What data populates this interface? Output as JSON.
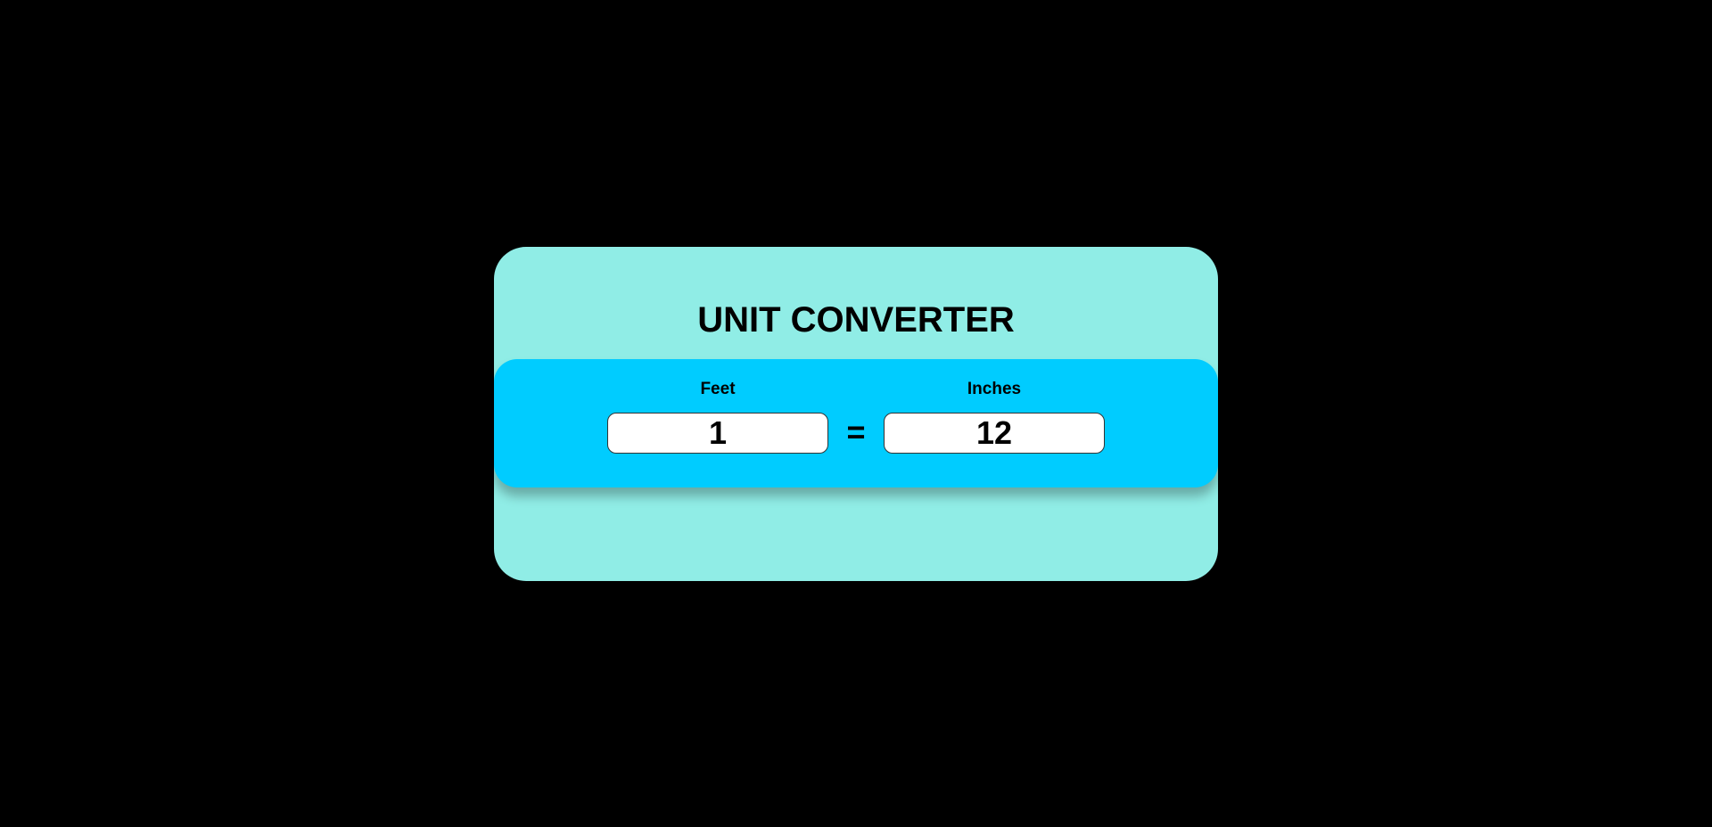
{
  "converter": {
    "title": "UNIT CONVERTER",
    "from": {
      "label": "Feet",
      "value": "1"
    },
    "equals_sign": "=",
    "to": {
      "label": "Inches",
      "value": "12"
    }
  },
  "colors": {
    "background": "#000000",
    "card": "#90ede6",
    "band": "#00ccff",
    "input_bg": "#ffffff",
    "text": "#000000"
  }
}
